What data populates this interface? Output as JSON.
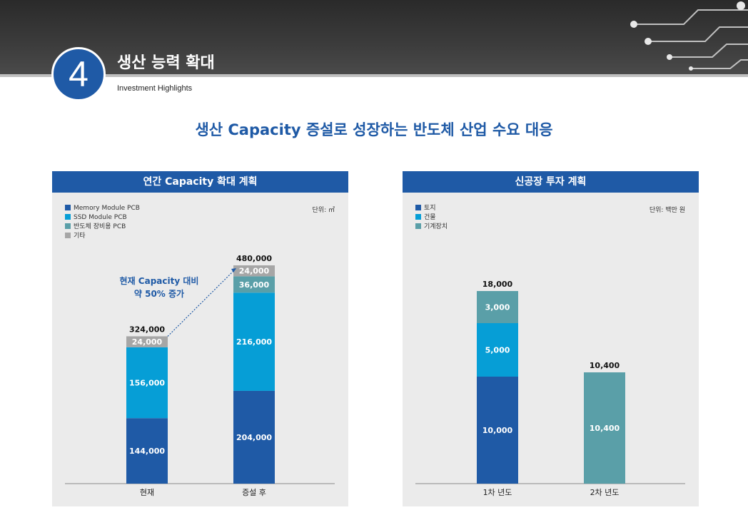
{
  "header": {
    "number": "4",
    "title": "생산 능력 확대",
    "subtitle": "Investment Highlights"
  },
  "headline": "생산 Capacity 증설로 성장하는 반도체 산업 수요 대응",
  "colors": {
    "dark_blue": "#1f5aa6",
    "light_blue": "#069ed6",
    "teal": "#5a9fa8",
    "gray": "#a6a6a6"
  },
  "chart_data": [
    {
      "type": "bar",
      "stacked": true,
      "title": "연간 Capacity 확대 계획",
      "unit": "단위: ㎡",
      "categories": [
        "현재",
        "증설 후"
      ],
      "series": [
        {
          "name": "Memory Module PCB",
          "values": [
            144000,
            204000
          ]
        },
        {
          "name": "SSD Module PCB",
          "values": [
            156000,
            216000
          ]
        },
        {
          "name": "반도체 장비용 PCB",
          "values": [
            0,
            36000
          ]
        },
        {
          "name": "기타",
          "values": [
            24000,
            24000
          ]
        }
      ],
      "series_labels": [
        [
          "144,000",
          "204,000"
        ],
        [
          "156,000",
          "216,000"
        ],
        [
          "",
          "36,000"
        ],
        [
          "24,000",
          "24,000"
        ]
      ],
      "totals": [
        324000,
        480000
      ],
      "total_labels": [
        "324,000",
        "480,000"
      ],
      "annotation": [
        "현재 Capacity 대비",
        "약 50% 증가"
      ],
      "ylim": [
        0,
        480000
      ],
      "legend": "top-left"
    },
    {
      "type": "bar",
      "stacked": true,
      "title": "신공장 투자 계획",
      "unit": "단위: 백만 원",
      "categories": [
        "1차 년도",
        "2차 년도"
      ],
      "series": [
        {
          "name": "토지",
          "values": [
            10000,
            0
          ]
        },
        {
          "name": "건물",
          "values": [
            5000,
            0
          ]
        },
        {
          "name": "기계장치",
          "values": [
            3000,
            10400
          ]
        }
      ],
      "series_labels": [
        [
          "10,000",
          ""
        ],
        [
          "5,000",
          ""
        ],
        [
          "3,000",
          "10,400"
        ]
      ],
      "totals": [
        18000,
        10400
      ],
      "total_labels": [
        "18,000",
        "10,400"
      ],
      "ylim": [
        0,
        18000
      ],
      "legend": "top-left"
    }
  ]
}
